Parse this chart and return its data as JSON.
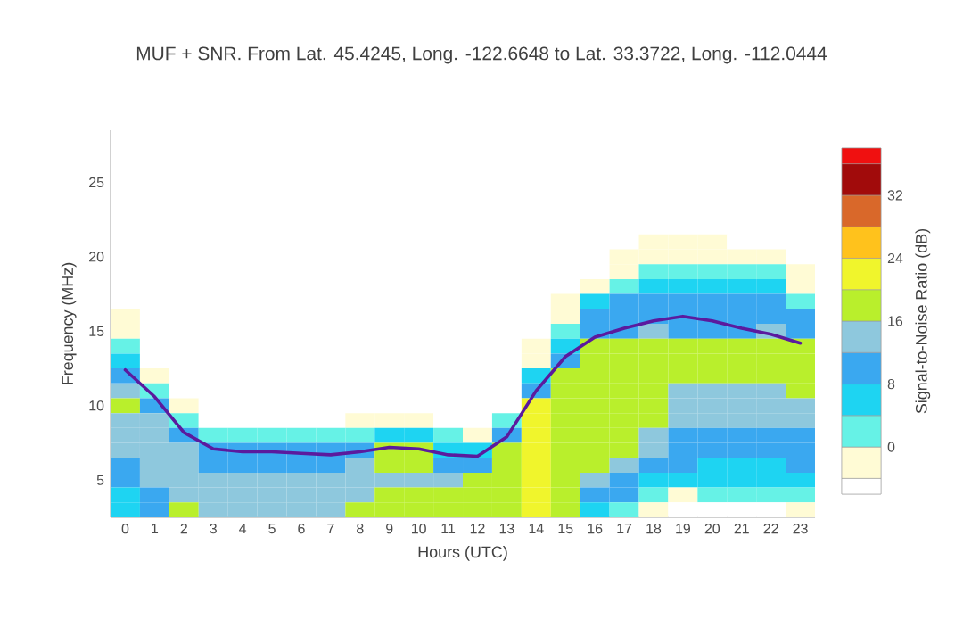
{
  "chart_data": {
    "type": "heatmap",
    "title": "MUF + SNR. From Lat. 45.4245, Long. -122.6648 to Lat. 33.3722, Long. -112.0444",
    "xlabel": "Hours (UTC)",
    "ylabel": "Frequency (MHz)",
    "clabel": "Signal-to-Noise Ratio (dB)",
    "categories": [
      "0",
      "1",
      "2",
      "3",
      "4",
      "5",
      "6",
      "7",
      "8",
      "9",
      "10",
      "11",
      "12",
      "13",
      "14",
      "15",
      "16",
      "17",
      "18",
      "19",
      "20",
      "21",
      "22",
      "23"
    ],
    "ylim": [
      2.5,
      28.5
    ],
    "yticks": [
      5,
      10,
      15,
      20,
      25
    ],
    "clim": [
      -6,
      38
    ],
    "cticks": [
      0,
      8,
      16,
      24,
      32
    ],
    "cells": [
      [
        -5,
        -5,
        -5,
        -5,
        -5,
        -5,
        -5,
        -5,
        -5,
        -5,
        -5,
        -5,
        -5,
        -5,
        -5,
        -5,
        -5,
        -5,
        -5,
        -5,
        -5,
        -5,
        -5,
        -5
      ],
      [
        -5,
        -5,
        -5,
        -5,
        -5,
        -5,
        -5,
        -5,
        -5,
        -5,
        -5,
        -5,
        -5,
        -5,
        -5,
        -5,
        -5,
        -5,
        -5,
        -5,
        -5,
        -5,
        -5,
        -5
      ],
      [
        -5,
        -5,
        -5,
        -5,
        -5,
        -5,
        -5,
        -5,
        -5,
        -5,
        -5,
        -5,
        -5,
        -5,
        -5,
        -5,
        -5,
        -5,
        -5,
        -5,
        -5,
        -5,
        -5,
        -5
      ],
      [
        -5,
        -5,
        -5,
        -5,
        -5,
        -5,
        -5,
        -5,
        -5,
        -5,
        -5,
        -5,
        -5,
        -5,
        -5,
        -5,
        -5,
        -5,
        -5,
        -5,
        -5,
        -5,
        -5,
        -5
      ],
      [
        -5,
        -5,
        -5,
        -5,
        -5,
        -5,
        -5,
        -5,
        -5,
        -5,
        -5,
        -5,
        -5,
        -5,
        -5,
        -5,
        -5,
        -5,
        -5,
        -5,
        -5,
        -5,
        -5,
        -5
      ],
      [
        -5,
        -5,
        -5,
        -5,
        -5,
        -5,
        -5,
        -5,
        -5,
        -5,
        -5,
        -5,
        -5,
        -5,
        -5,
        -5,
        -5,
        -5,
        -5,
        -5,
        -5,
        -5,
        -5,
        -5
      ],
      [
        -5,
        -5,
        -5,
        -5,
        -5,
        -5,
        -5,
        -5,
        -5,
        -5,
        -5,
        -5,
        -5,
        -5,
        -5,
        -5,
        -5,
        -5,
        -5,
        -5,
        -5,
        -5,
        -5,
        -5
      ],
      [
        -5,
        -5,
        -5,
        -5,
        -5,
        -5,
        -5,
        -5,
        -5,
        -5,
        -5,
        -5,
        -5,
        -5,
        -5,
        -5,
        -5,
        -5,
        -2,
        -2,
        -2,
        -5,
        -5,
        -5
      ],
      [
        -5,
        -5,
        -5,
        -5,
        -5,
        -5,
        -5,
        -5,
        -5,
        -5,
        -5,
        -5,
        -5,
        -5,
        -5,
        -5,
        -5,
        -2,
        -2,
        -2,
        -2,
        -2,
        -2,
        -5
      ],
      [
        -5,
        -5,
        -5,
        -5,
        -5,
        -5,
        -5,
        -5,
        -5,
        -5,
        -5,
        -5,
        -5,
        -5,
        -5,
        -5,
        -5,
        -2,
        2,
        2,
        2,
        2,
        2,
        -2
      ],
      [
        -5,
        -5,
        -5,
        -5,
        -5,
        -5,
        -5,
        -5,
        -5,
        -5,
        -5,
        -5,
        -5,
        -5,
        -5,
        -5,
        -2,
        2,
        6,
        6,
        6,
        6,
        6,
        -2
      ],
      [
        -5,
        -5,
        -5,
        -5,
        -5,
        -5,
        -5,
        -5,
        -5,
        -5,
        -5,
        -5,
        -5,
        -5,
        -5,
        -2,
        6,
        10,
        10,
        10,
        10,
        10,
        10,
        2
      ],
      [
        -2,
        -5,
        -5,
        -5,
        -5,
        -5,
        -5,
        -5,
        -5,
        -5,
        -5,
        -5,
        -5,
        -5,
        -5,
        -2,
        10,
        10,
        10,
        10,
        10,
        10,
        10,
        10
      ],
      [
        -2,
        -5,
        -5,
        -5,
        -5,
        -5,
        -5,
        -5,
        -5,
        -5,
        -5,
        -5,
        -5,
        -5,
        -5,
        2,
        10,
        10,
        14,
        10,
        10,
        10,
        14,
        10
      ],
      [
        2,
        -5,
        -5,
        -5,
        -5,
        -5,
        -5,
        -5,
        -5,
        -5,
        -5,
        -5,
        -5,
        -5,
        -2,
        6,
        18,
        18,
        18,
        18,
        18,
        18,
        18,
        18
      ],
      [
        6,
        -5,
        -5,
        -5,
        -5,
        -5,
        -5,
        -5,
        -5,
        -5,
        -5,
        -5,
        -5,
        -5,
        -2,
        10,
        18,
        18,
        18,
        18,
        18,
        18,
        18,
        18
      ],
      [
        10,
        -2,
        -5,
        -5,
        -5,
        -5,
        -5,
        -5,
        -5,
        -5,
        -5,
        -5,
        -5,
        -5,
        6,
        18,
        18,
        18,
        18,
        18,
        18,
        18,
        18,
        18
      ],
      [
        14,
        2,
        -5,
        -5,
        -5,
        -5,
        -5,
        -5,
        -5,
        -5,
        -5,
        -5,
        -5,
        -5,
        10,
        18,
        18,
        18,
        18,
        14,
        14,
        14,
        14,
        18
      ],
      [
        18,
        10,
        -2,
        -5,
        -5,
        -5,
        -5,
        -5,
        -5,
        -5,
        -5,
        -5,
        -5,
        -5,
        22,
        18,
        18,
        18,
        18,
        14,
        14,
        14,
        14,
        14
      ],
      [
        14,
        14,
        2,
        -5,
        -5,
        -5,
        -5,
        -5,
        -2,
        -2,
        -2,
        -5,
        -5,
        2,
        22,
        18,
        18,
        18,
        18,
        14,
        14,
        14,
        14,
        14
      ],
      [
        14,
        14,
        10,
        2,
        2,
        2,
        2,
        2,
        2,
        6,
        6,
        2,
        -2,
        10,
        22,
        18,
        18,
        18,
        14,
        10,
        10,
        10,
        10,
        10
      ],
      [
        14,
        14,
        14,
        10,
        10,
        10,
        10,
        10,
        10,
        18,
        18,
        6,
        6,
        18,
        22,
        18,
        18,
        18,
        14,
        10,
        10,
        10,
        10,
        10
      ],
      [
        10,
        14,
        14,
        10,
        10,
        10,
        10,
        10,
        14,
        18,
        18,
        10,
        10,
        18,
        22,
        18,
        18,
        14,
        10,
        10,
        6,
        6,
        6,
        10
      ],
      [
        10,
        14,
        14,
        14,
        14,
        14,
        14,
        14,
        14,
        14,
        14,
        14,
        18,
        18,
        22,
        18,
        14,
        10,
        6,
        6,
        6,
        6,
        6,
        6
      ],
      [
        6,
        10,
        14,
        14,
        14,
        14,
        14,
        14,
        14,
        18,
        18,
        18,
        18,
        18,
        22,
        18,
        10,
        10,
        2,
        -2,
        2,
        2,
        2,
        2
      ],
      [
        6,
        10,
        18,
        14,
        14,
        14,
        14,
        14,
        18,
        18,
        18,
        18,
        18,
        18,
        22,
        18,
        6,
        2,
        -2,
        -5,
        -5,
        -5,
        -5,
        -2
      ]
    ],
    "series": [
      {
        "type": "line",
        "color": "#5b1a9e",
        "values": [
          12.4,
          10.6,
          8.2,
          7.1,
          6.9,
          6.9,
          6.8,
          6.7,
          6.9,
          7.2,
          7.1,
          6.7,
          6.6,
          7.9,
          11.0,
          13.3,
          14.6,
          15.2,
          15.7,
          16.0,
          15.7,
          15.2,
          14.8,
          14.2
        ]
      }
    ]
  }
}
